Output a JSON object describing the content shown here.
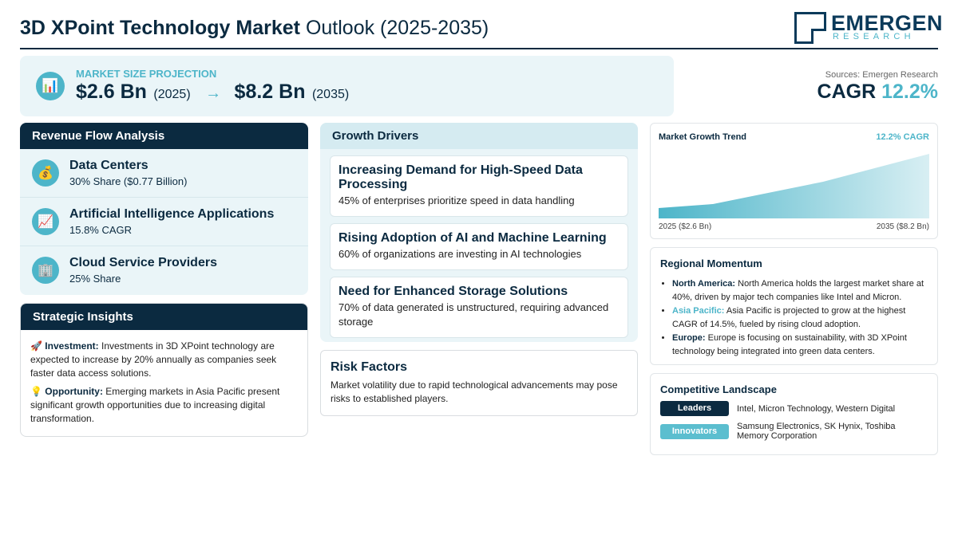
{
  "header": {
    "title_bold": "3D XPoint Technology Market",
    "title_rest": "Outlook (2025-2035)",
    "logo_main": "EMERGEN",
    "logo_sub": "RESEARCH"
  },
  "projection": {
    "label": "MARKET SIZE PROJECTION",
    "icon": "bar-chart-icon",
    "start_value": "$2.6 Bn",
    "start_year": "(2025)",
    "arrow": "→",
    "end_value": "$8.2 Bn",
    "end_year": "(2035)"
  },
  "summary": {
    "sources": "Sources: Emergen Research",
    "cagr_label": "CAGR",
    "cagr_value": "12.2%"
  },
  "revenue": {
    "heading": "Revenue Flow Analysis",
    "items": [
      {
        "icon": "money-bag-icon",
        "glyph": "💰",
        "title": "Data Centers",
        "sub": "30% Share ($0.77 Billion)"
      },
      {
        "icon": "trend-chart-icon",
        "glyph": "📈",
        "title": "Artificial Intelligence Applications",
        "sub": "15.8% CAGR"
      },
      {
        "icon": "office-building-icon",
        "glyph": "🏢",
        "title": "Cloud Service Providers",
        "sub": "25% Share"
      }
    ]
  },
  "insights": {
    "heading": "Strategic Insights",
    "items": [
      {
        "glyph": "🚀",
        "label": "Investment:",
        "text": "Investments in 3D XPoint technology are expected to increase by 20% annually as companies seek faster data access solutions."
      },
      {
        "glyph": "💡",
        "label": "Opportunity:",
        "text": "Emerging markets in Asia Pacific present significant growth opportunities due to increasing digital transformation."
      }
    ]
  },
  "drivers": {
    "heading": "Growth Drivers",
    "items": [
      {
        "title": "Increasing Demand for High-Speed Data Processing",
        "sub": "45% of enterprises prioritize speed in data handling"
      },
      {
        "title": "Rising Adoption of AI and Machine Learning",
        "sub": "60% of organizations are investing in AI technologies"
      },
      {
        "title": "Need for Enhanced Storage Solutions",
        "sub": "70% of data generated is unstructured, requiring advanced storage"
      }
    ]
  },
  "risk": {
    "heading": "Risk Factors",
    "text": "Market volatility due to rapid technological advancements may pose risks to established players."
  },
  "trend": {
    "title": "Market Growth Trend",
    "cagr": "12.2% CAGR",
    "start_label": "2025 ($2.6 Bn)",
    "end_label": "2035 ($8.2 Bn)",
    "fill_color": "#4db5c9"
  },
  "regional": {
    "heading": "Regional Momentum",
    "items": [
      {
        "region": "North America:",
        "text": "North America holds the largest market share at 40%, driven by major tech companies like Intel and Micron."
      },
      {
        "region": "Asia Pacific:",
        "text": "Asia Pacific is projected to grow at the highest CAGR of 14.5%, fueled by rising cloud adoption."
      },
      {
        "region": "Europe:",
        "text": "Europe is focusing on sustainability, with 3D XPoint technology being integrated into green data centers."
      }
    ]
  },
  "competitive": {
    "heading": "Competitive Landscape",
    "rows": [
      {
        "badge": "Leaders",
        "text": "Intel, Micron Technology, Western Digital"
      },
      {
        "badge": "Innovators",
        "text": "Samsung Electronics, SK Hynix, Toshiba Memory Corporation"
      }
    ]
  },
  "colors": {
    "navy": "#0b2a40",
    "teal": "#4db5c9",
    "panel_bg": "#eaf5f8"
  }
}
